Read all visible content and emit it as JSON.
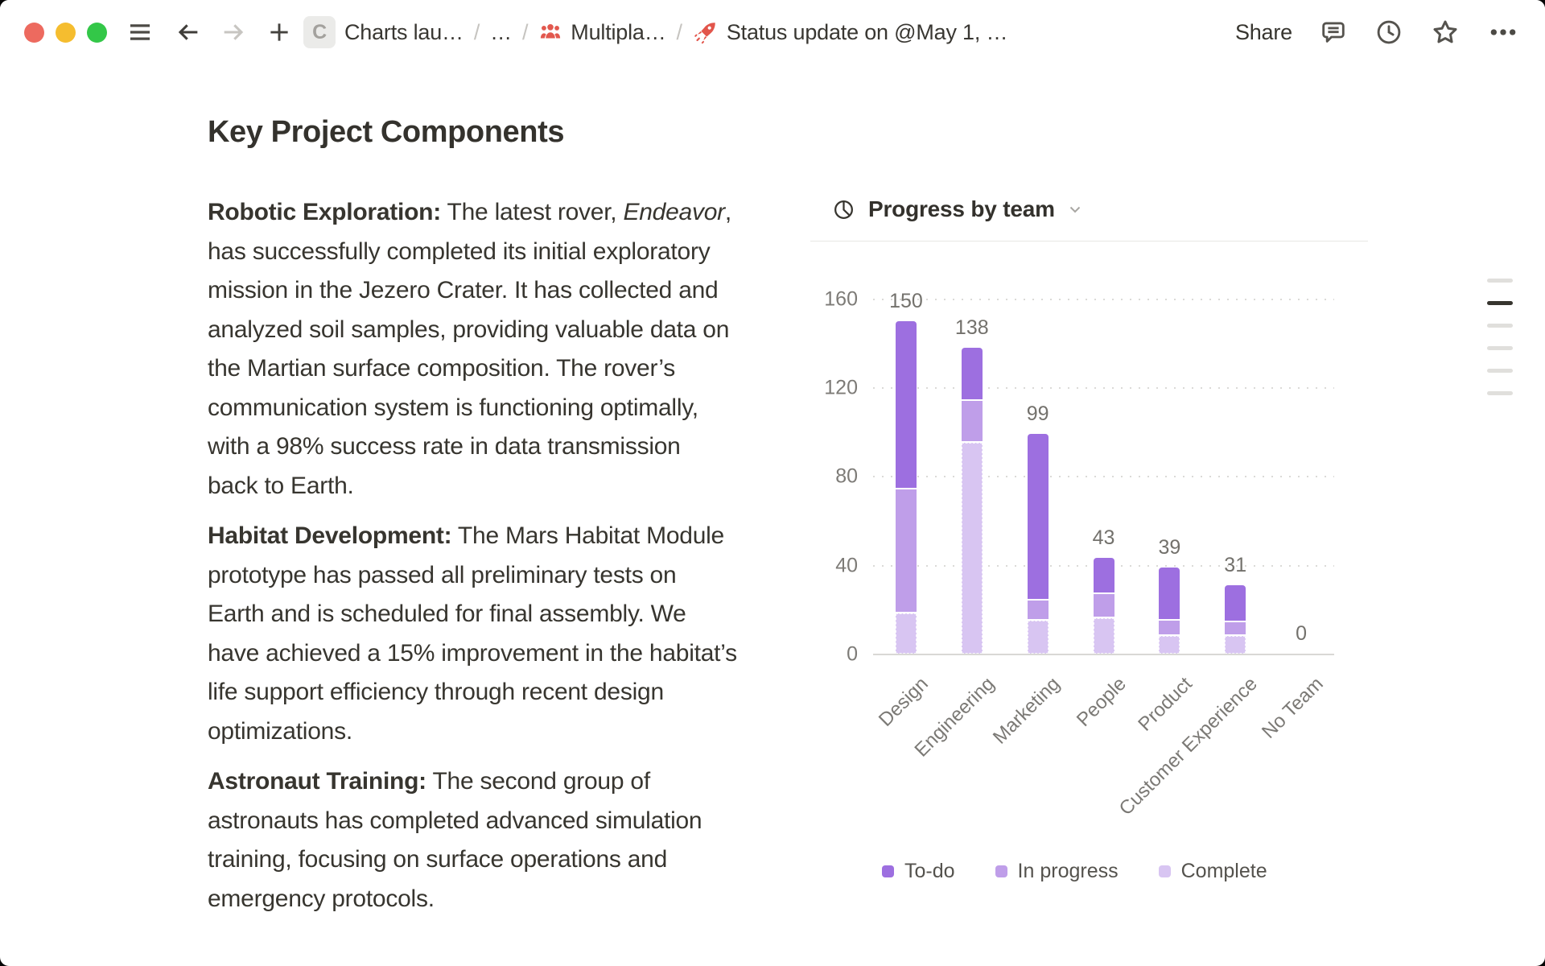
{
  "titlebar": {
    "breadcrumb": [
      {
        "label": "Charts lau…"
      },
      {
        "label": "…"
      },
      {
        "label": "Multipla…"
      },
      {
        "label": "Status update on @May 1, …"
      }
    ],
    "page_icon_letter": "C",
    "share_label": "Share"
  },
  "document": {
    "heading": "Key Project Components",
    "paragraphs": {
      "p1": {
        "lead": "Robotic Exploration:",
        "before_italic": " The latest rover, ",
        "italic": "Endeavor",
        "after_italic": ", has successfully completed its initial exploratory mission in the Jezero Crater. It has collected and analyzed soil samples, providing valuable data on the Martian surface composition. The rover’s communication system is functioning optimally, with a 98% success rate in data transmission back to Earth."
      },
      "p2": {
        "lead": "Habitat Development:",
        "body": " The Mars Habitat Module prototype has passed all preliminary tests on Earth and is scheduled for final assembly. We have achieved a 15% improvement in the habitat’s life support efficiency through recent design optimizations."
      },
      "p3": {
        "lead": "Astronaut Training:",
        "body": " The second group of astronauts has completed advanced simulation training, focusing on surface operations and emergency protocols."
      }
    }
  },
  "chart_data": {
    "type": "bar",
    "stacked": true,
    "title": "Progress by team",
    "categories": [
      "Design",
      "Engineering",
      "Marketing",
      "People",
      "Product",
      "Customer Experience",
      "No Team"
    ],
    "totals": [
      150,
      138,
      99,
      43,
      39,
      31,
      0
    ],
    "series": [
      {
        "name": "To-do",
        "color": "#9d6fe0",
        "values": [
          76,
          24,
          75,
          16,
          24,
          17,
          0
        ]
      },
      {
        "name": "In progress",
        "color": "#bf9ee9",
        "values": [
          56,
          19,
          9,
          11,
          7,
          6,
          0
        ]
      },
      {
        "name": "Complete",
        "color": "#d8c5f2",
        "values": [
          18,
          95,
          15,
          16,
          8,
          8,
          0
        ]
      }
    ],
    "ylim": [
      0,
      160
    ],
    "yticks": [
      0,
      40,
      80,
      120,
      160
    ],
    "xlabel": "",
    "ylabel": "",
    "grid": "dotted-horizontal",
    "legend_position": "bottom"
  },
  "outline": {
    "bars": 6,
    "active_index": 1
  }
}
